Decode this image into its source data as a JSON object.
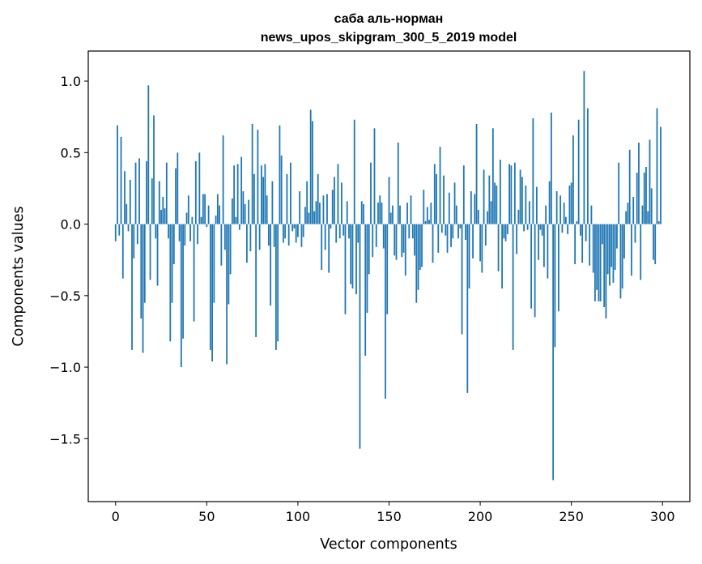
{
  "chart_data": {
    "type": "bar",
    "title": "саба аль-норман",
    "subtitle": "news_upos_skipgram_300_5_2019 model",
    "xlabel": "Vector components",
    "ylabel": "Components values",
    "xlim": [
      -15,
      315
    ],
    "ylim": [
      -1.94,
      1.21
    ],
    "xticks": [
      0,
      50,
      100,
      150,
      200,
      250,
      300
    ],
    "yticks": [
      -1.5,
      -1.0,
      -0.5,
      0.0,
      0.5,
      1.0
    ],
    "ytick_labels": [
      "−1.5",
      "−1.0",
      "−0.5",
      "0.0",
      "0.5",
      "1.0"
    ],
    "grid": false,
    "bar_color": "#1f77b4",
    "values": [
      -0.12,
      0.69,
      -0.08,
      0.61,
      -0.38,
      0.37,
      0.14,
      -0.05,
      0.31,
      -0.88,
      -0.24,
      0.43,
      -0.14,
      0.46,
      -0.66,
      -0.9,
      -0.55,
      0.44,
      0.97,
      -0.39,
      0.32,
      0.76,
      -0.1,
      -0.43,
      0.3,
      0.1,
      0.19,
      0.11,
      0.43,
      -0.1,
      -0.82,
      -0.55,
      -0.28,
      0.39,
      0.5,
      -0.12,
      -1.0,
      -0.8,
      -0.15,
      0.08,
      0.2,
      -0.12,
      0.05,
      -0.68,
      0.44,
      -0.14,
      0.5,
      0.05,
      0.21,
      0.21,
      -0.02,
      0.13,
      -0.88,
      -0.96,
      -0.55,
      0.06,
      0.21,
      0.13,
      -0.29,
      0.62,
      -0.18,
      -0.98,
      -0.56,
      -0.35,
      0.18,
      0.41,
      0.05,
      0.42,
      -0.04,
      0.47,
      0.23,
      0.14,
      -0.27,
      0.17,
      -0.19,
      0.7,
      0.35,
      -0.79,
      0.66,
      -0.18,
      0.41,
      0.33,
      0.42,
      0.2,
      -0.15,
      -0.57,
      0.3,
      -0.16,
      -0.88,
      -0.82,
      0.69,
      0.48,
      -0.13,
      -0.1,
      0.35,
      -0.15,
      0.43,
      -0.05,
      -0.03,
      -0.13,
      -0.09,
      0.23,
      -0.16,
      -0.09,
      0.12,
      0.3,
      0.08,
      0.8,
      0.72,
      0.09,
      0.16,
      0.35,
      0.15,
      -0.32,
      0.2,
      -0.18,
      0.21,
      -0.34,
      -0.03,
      0.24,
      0.33,
      -0.13,
      0.42,
      -0.1,
      0.29,
      -0.08,
      -0.63,
      0.16,
      -0.1,
      -0.42,
      -0.45,
      0.73,
      -0.49,
      -0.13,
      -1.57,
      0.16,
      0.14,
      -0.92,
      -0.62,
      -0.35,
      0.43,
      -0.23,
      0.67,
      -0.16,
      0.15,
      0.2,
      0.15,
      -0.17,
      -1.22,
      -0.63,
      0.33,
      0.08,
      0.13,
      -0.22,
      -0.25,
      0.57,
      0.13,
      -0.23,
      -0.2,
      -0.36,
      0.15,
      -0.1,
      0.2,
      -0.1,
      -0.22,
      -0.55,
      -0.46,
      -0.32,
      -0.3,
      0.24,
      0.02,
      0.12,
      0.03,
      0.15,
      -0.27,
      0.42,
      0.35,
      -0.2,
      0.54,
      -0.06,
      0.34,
      -0.08,
      -0.2,
      0.22,
      -0.16,
      -0.1,
      0.29,
      0.13,
      -0.1,
      -0.03,
      -0.77,
      0.41,
      -0.11,
      -1.18,
      -0.45,
      0.23,
      -0.24,
      0.21,
      0.7,
      0.1,
      -0.26,
      -0.34,
      0.38,
      -0.15,
      0.09,
      0.34,
      0.16,
      0.67,
      0.29,
      0.27,
      -0.33,
      0.45,
      -0.45,
      -0.1,
      -0.12,
      -0.07,
      0.42,
      0.41,
      -0.88,
      0.43,
      -0.21,
      0.1,
      0.38,
      0.33,
      -0.05,
      0.27,
      -0.04,
      0.16,
      -0.59,
      0.74,
      -0.65,
      0.26,
      -0.25,
      -0.04,
      -0.08,
      -0.3,
      0.13,
      -0.38,
      0.3,
      0.78,
      -1.79,
      -0.86,
      0.23,
      -0.61,
      0.2,
      -0.06,
      0.15,
      0.05,
      -0.07,
      0.27,
      0.29,
      0.62,
      -0.28,
      0.02,
      0.73,
      -0.08,
      -0.27,
      1.07,
      -0.12,
      0.81,
      -0.29,
      0.13,
      -0.34,
      -0.54,
      -0.46,
      -0.54,
      -0.54,
      -0.14,
      -0.58,
      -0.66,
      -0.35,
      -0.43,
      -0.3,
      -0.41,
      -0.32,
      -0.17,
      0.43,
      -0.52,
      -0.45,
      -0.24,
      0.09,
      0.15,
      0.52,
      -0.36,
      0.19,
      -0.13,
      0.36,
      0.57,
      -0.39,
      0.13,
      0.36,
      0.4,
      0.09,
      0.59,
      0.25,
      -0.25,
      -0.28,
      0.81,
      0.02,
      0.68
    ]
  }
}
